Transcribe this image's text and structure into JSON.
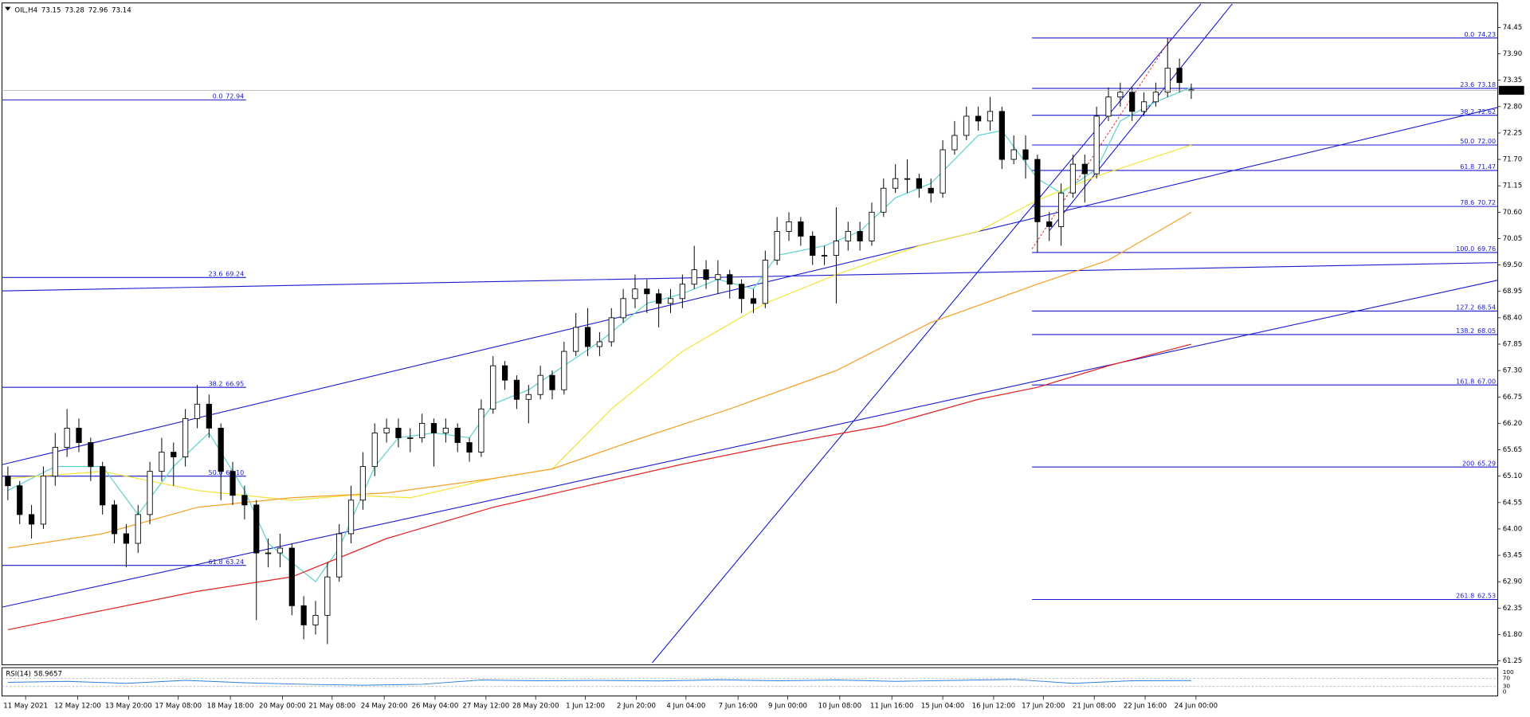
{
  "header": {
    "symbol": "OIL,H4"
  },
  "chart_data": {
    "type": "candlestick",
    "open": [
      65.1,
      64.9,
      64.3,
      64.1,
      65.1,
      65.7,
      66.1,
      65.8,
      65.3,
      64.5,
      63.9,
      63.7,
      64.3,
      65.2,
      65.6,
      65.5,
      66.3,
      66.6,
      66.1,
      65.2,
      64.7,
      64.5,
      63.5,
      63.5,
      63.6,
      62.4,
      62.0,
      62.2,
      63.0,
      63.9,
      64.6,
      65.3,
      66.0,
      66.1,
      65.9,
      65.9,
      66.2,
      66.0,
      66.1,
      65.8,
      65.6,
      66.5,
      67.4,
      67.1,
      66.7,
      66.8,
      67.2,
      66.9,
      67.7,
      68.2,
      67.8,
      67.9,
      68.4,
      68.8,
      69.0,
      68.9,
      68.7,
      68.8,
      69.1,
      69.4,
      69.2,
      69.3,
      69.1,
      68.8,
      68.7,
      69.6,
      70.2,
      70.4,
      70.1,
      69.7,
      69.7,
      70.0,
      70.2,
      70.0,
      70.6,
      71.1,
      71.3,
      71.3,
      71.1,
      71.0,
      71.9,
      72.2,
      72.6,
      72.5,
      72.7,
      71.7,
      71.9,
      71.7,
      70.4,
      70.3,
      71.0,
      71.6,
      71.4,
      72.6,
      73.0,
      73.1,
      72.7,
      72.9,
      73.1,
      73.6,
      73.15
    ],
    "high": [
      65.3,
      65.0,
      64.5,
      65.3,
      66.0,
      66.5,
      66.3,
      65.9,
      65.4,
      64.6,
      64.1,
      64.5,
      65.4,
      65.9,
      65.8,
      66.5,
      67.0,
      66.8,
      66.2,
      65.4,
      64.9,
      64.6,
      63.8,
      63.9,
      63.7,
      62.6,
      62.5,
      63.3,
      64.1,
      64.9,
      65.6,
      66.2,
      66.3,
      66.3,
      66.1,
      66.4,
      66.3,
      66.3,
      66.2,
      65.9,
      66.7,
      67.6,
      67.5,
      67.2,
      67.0,
      67.4,
      67.3,
      67.9,
      68.5,
      68.6,
      68.1,
      68.6,
      69.0,
      69.3,
      69.2,
      69.0,
      69.0,
      69.3,
      69.9,
      69.6,
      69.6,
      69.4,
      69.2,
      69.0,
      69.8,
      70.5,
      70.6,
      70.5,
      70.2,
      69.9,
      70.7,
      70.4,
      70.4,
      70.8,
      71.3,
      71.6,
      71.7,
      71.4,
      71.3,
      72.1,
      72.5,
      72.8,
      72.8,
      73.0,
      72.8,
      72.2,
      72.2,
      71.8,
      70.6,
      71.2,
      71.8,
      71.8,
      72.8,
      73.2,
      73.3,
      73.2,
      73.1,
      73.3,
      74.23,
      73.8,
      73.28
    ],
    "low": [
      64.6,
      64.1,
      63.8,
      64.0,
      64.9,
      65.5,
      65.6,
      65.0,
      64.3,
      63.7,
      63.2,
      63.5,
      64.1,
      65.0,
      64.9,
      65.3,
      66.1,
      65.9,
      64.6,
      64.5,
      64.2,
      62.1,
      63.2,
      63.2,
      62.2,
      61.7,
      61.8,
      61.6,
      62.9,
      63.7,
      64.4,
      65.1,
      65.8,
      65.7,
      65.6,
      65.8,
      65.3,
      65.8,
      65.6,
      65.4,
      65.5,
      66.4,
      66.9,
      66.5,
      66.2,
      66.7,
      66.7,
      66.8,
      67.6,
      67.6,
      67.6,
      67.8,
      68.3,
      68.6,
      68.5,
      68.2,
      68.5,
      68.6,
      69.0,
      69.0,
      68.9,
      68.8,
      68.5,
      68.5,
      68.6,
      69.5,
      70.0,
      69.9,
      69.5,
      69.5,
      68.7,
      69.8,
      69.8,
      69.9,
      70.5,
      71.0,
      71.0,
      70.9,
      70.8,
      70.9,
      71.8,
      72.1,
      72.3,
      72.3,
      71.5,
      71.6,
      71.3,
      69.76,
      70.0,
      69.9,
      70.9,
      70.8,
      71.3,
      72.5,
      72.8,
      72.5,
      72.6,
      72.8,
      73.0,
      73.1,
      72.96
    ],
    "close": [
      64.9,
      64.3,
      64.1,
      65.1,
      65.7,
      66.1,
      65.8,
      65.3,
      64.5,
      63.9,
      63.7,
      64.3,
      65.2,
      65.6,
      65.5,
      66.3,
      66.6,
      66.1,
      65.2,
      64.7,
      64.5,
      63.5,
      63.5,
      63.6,
      62.4,
      62.0,
      62.2,
      63.0,
      63.9,
      64.6,
      65.3,
      66.0,
      66.1,
      65.9,
      65.9,
      66.2,
      66.0,
      66.1,
      65.8,
      65.6,
      66.5,
      67.4,
      67.1,
      66.7,
      66.8,
      67.2,
      66.9,
      67.7,
      68.2,
      67.8,
      67.9,
      68.4,
      68.8,
      69.0,
      68.9,
      68.7,
      68.8,
      69.1,
      69.4,
      69.2,
      69.3,
      69.1,
      68.8,
      68.7,
      69.6,
      70.2,
      70.4,
      70.1,
      69.7,
      69.7,
      70.0,
      70.2,
      70.0,
      70.6,
      71.1,
      71.3,
      71.3,
      71.1,
      71.0,
      71.9,
      72.2,
      72.6,
      72.5,
      72.7,
      71.7,
      71.9,
      71.7,
      70.4,
      70.3,
      71.0,
      71.6,
      71.4,
      72.6,
      73.0,
      73.1,
      72.7,
      72.9,
      73.1,
      73.6,
      73.3,
      73.14
    ],
    "up_color": "#ffffff",
    "down_color": "#000000",
    "xlim": [
      -0.5,
      125.9
    ],
    "ylim": [
      61.17,
      74.96
    ],
    "xticks": [
      {
        "value": 1.5,
        "label": "11 May 2021"
      },
      {
        "value": 5.9,
        "label": "12 May 12:00"
      },
      {
        "value": 10.2,
        "label": "13 May 20:00"
      },
      {
        "value": 14.4,
        "label": "17 May 08:00"
      },
      {
        "value": 18.8,
        "label": "18 May 18:00"
      },
      {
        "value": 23.2,
        "label": "20 May 00:00"
      },
      {
        "value": 27.4,
        "label": "21 May 08:00"
      },
      {
        "value": 31.8,
        "label": "24 May 20:00"
      },
      {
        "value": 36.1,
        "label": "26 May 04:00"
      },
      {
        "value": 40.4,
        "label": "27 May 12:00"
      },
      {
        "value": 44.6,
        "label": "28 May 20:00"
      },
      {
        "value": 48.8,
        "label": "1 Jun 12:00"
      },
      {
        "value": 53.1,
        "label": "2 Jun 20:00"
      },
      {
        "value": 57.3,
        "label": "4 Jun 04:00"
      },
      {
        "value": 61.7,
        "label": "7 Jun 16:00"
      },
      {
        "value": 65.9,
        "label": "9 Jun 00:00"
      },
      {
        "value": 70.3,
        "label": "10 Jun 08:00"
      },
      {
        "value": 74.7,
        "label": "11 Jun 16:00"
      },
      {
        "value": 79.0,
        "label": "15 Jun 04:00"
      },
      {
        "value": 83.3,
        "label": "16 Jun 12:00"
      },
      {
        "value": 87.5,
        "label": "17 Jun 20:00"
      },
      {
        "value": 91.8,
        "label": "21 Jun 08:00"
      },
      {
        "value": 96.1,
        "label": "22 Jun 16:00"
      },
      {
        "value": 100.4,
        "label": "24 Jun 00:00"
      }
    ],
    "yticks": [
      74.45,
      {
        "value": 73.9,
        "label": "73.90"
      },
      73.35,
      {
        "value": 72.8,
        "label": "72.80"
      },
      72.25,
      {
        "value": 71.7,
        "label": "71.70"
      },
      71.15,
      {
        "value": 70.6,
        "label": "70.60"
      },
      70.05,
      {
        "value": 69.5,
        "label": "69.50"
      },
      68.95,
      {
        "value": 68.4,
        "label": "68.40"
      },
      67.85,
      {
        "value": 67.3,
        "label": "67.30"
      },
      66.75,
      {
        "value": 66.2,
        "label": "66.20"
      },
      65.65,
      {
        "value": 65.1,
        "label": "65.10"
      },
      64.55,
      {
        "value": 64,
        "label": "64.00"
      },
      63.45,
      {
        "value": 62.9,
        "label": "62.90"
      },
      62.35,
      {
        "value": 61.8,
        "label": "61.80"
      },
      61.25
    ],
    "moving_averages": [
      {
        "color": "#5fd3d0",
        "x": [
          0,
          4,
          8,
          11,
          14,
          17,
          20,
          22,
          26,
          28,
          31,
          33,
          36,
          39,
          41,
          44,
          47,
          50,
          54,
          57,
          60,
          63,
          65,
          69,
          72,
          75,
          78,
          82,
          84,
          87,
          89,
          92,
          94,
          97,
          100
        ],
        "values": [
          64.8,
          65.3,
          65.3,
          64.3,
          65.3,
          66.0,
          64.8,
          63.7,
          62.9,
          63.6,
          65.3,
          65.9,
          66.0,
          65.9,
          66.6,
          66.9,
          67.4,
          67.9,
          68.7,
          68.9,
          69.2,
          69.0,
          69.7,
          69.9,
          70.2,
          70.9,
          71.2,
          72.2,
          72.3,
          71.3,
          71.0,
          71.5,
          72.5,
          72.9,
          73.2
        ]
      },
      {
        "color": "#f2e43c",
        "x": [
          0,
          8,
          16,
          24,
          29,
          34,
          41,
          46,
          51,
          57,
          64,
          70,
          77,
          82,
          87,
          92,
          100
        ],
        "values": [
          65.05,
          65.2,
          64.8,
          64.6,
          64.7,
          64.65,
          65.05,
          65.25,
          66.5,
          67.7,
          68.7,
          69.3,
          69.9,
          70.2,
          70.85,
          71.35,
          72.0
        ]
      },
      {
        "color": "#f5a027",
        "x": [
          0,
          8,
          16,
          24,
          32,
          41,
          46,
          53,
          61,
          70,
          78,
          87,
          93,
          100
        ],
        "values": [
          63.6,
          63.9,
          64.45,
          64.65,
          64.75,
          65.05,
          65.25,
          65.85,
          66.5,
          67.3,
          68.3,
          69.1,
          69.6,
          70.6
        ]
      },
      {
        "color": "#e32222",
        "x": [
          0,
          8,
          16,
          24,
          32,
          41,
          49,
          57,
          65,
          74,
          82,
          87,
          93,
          100
        ],
        "values": [
          61.9,
          62.3,
          62.7,
          63.0,
          63.8,
          64.45,
          64.9,
          65.35,
          65.75,
          66.15,
          66.7,
          66.95,
          67.4,
          67.85
        ]
      }
    ],
    "fib_sets": [
      {
        "anchor": "left",
        "color": "#1a1acd",
        "levels": [
          {
            "level": "0.0",
            "price": 72.94
          },
          {
            "level": "23.6",
            "price": 69.24
          },
          {
            "level": "38.2",
            "price": 66.95
          },
          {
            "level": "50.0",
            "price": {
              "value": 65.1,
              "label": "65.10"
            }
          },
          {
            "level": "61.8",
            "price": 63.24
          }
        ]
      },
      {
        "anchor": "right",
        "color": "#1a1acd",
        "levels": [
          {
            "level": "0.0",
            "price": 74.23
          },
          {
            "level": "23.6",
            "price": 73.18
          },
          {
            "level": "38.2",
            "price": 72.62
          },
          {
            "level": "50.0",
            "price": {
              "value": 72,
              "label": "72.00"
            }
          },
          {
            "level": "61.8",
            "price": 71.47
          },
          {
            "level": "78.6",
            "price": 70.72
          },
          {
            "level": "100.0",
            "price": 69.76
          },
          {
            "level": "127.2",
            "price": 68.54
          },
          {
            "level": "138.2",
            "price": 68.05
          },
          {
            "level": "161.8",
            "price": {
              "value": 67,
              "label": "67.00"
            }
          },
          {
            "level": "200",
            "price": 65.29
          },
          {
            "level": "261.8",
            "price": 62.53
          }
        ]
      }
    ],
    "rsi": {
      "label": "RSI(14)",
      "value": 58.9657,
      "color": "#2f7fd8",
      "ylim": [
        0,
        100
      ],
      "yticks": [
        100,
        70,
        30,
        0
      ],
      "x": [
        0,
        5,
        10,
        15,
        20,
        25,
        30,
        35,
        40,
        45,
        50,
        55,
        60,
        65,
        70,
        75,
        80,
        85,
        90,
        95,
        100
      ],
      "values": [
        50,
        55,
        45,
        60,
        48,
        40,
        35,
        40,
        62,
        58,
        60,
        57,
        63,
        58,
        62,
        55,
        60,
        65,
        45,
        58,
        59
      ]
    }
  }
}
